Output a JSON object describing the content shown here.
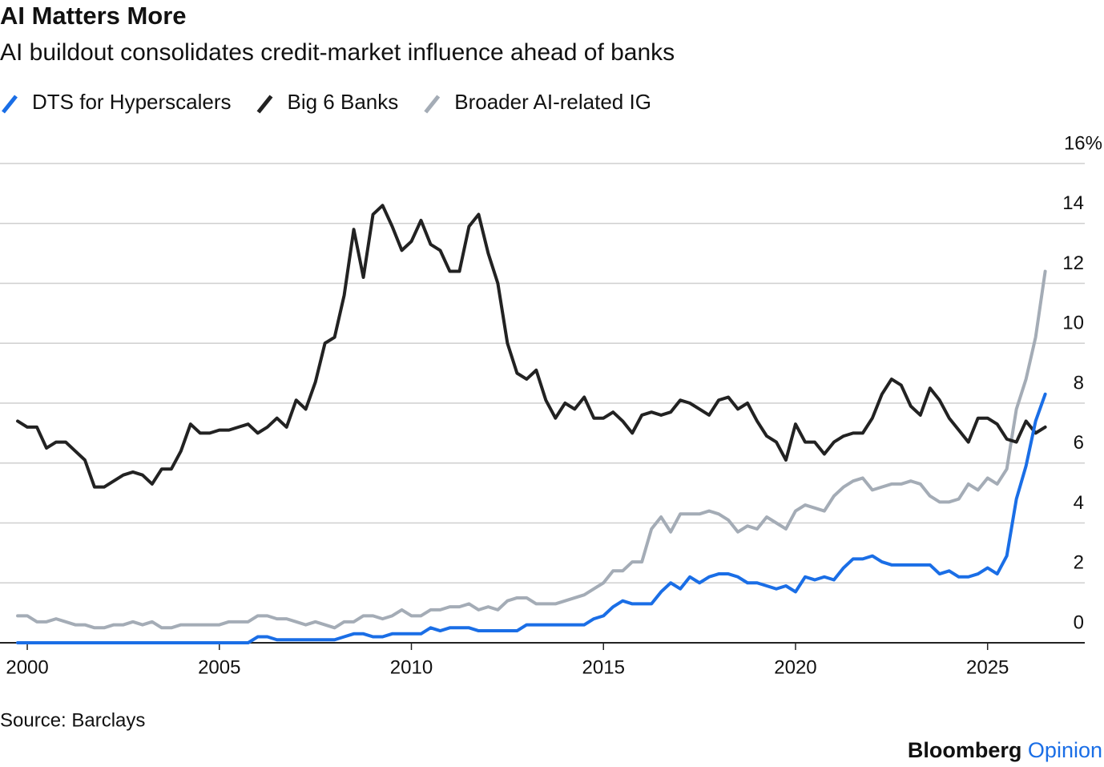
{
  "chart_data": {
    "type": "line",
    "title": "AI Matters More",
    "subtitle": "AI buildout consolidates credit-market influence ahead of banks",
    "source": "Source: Barclays",
    "brand": "Bloomberg",
    "brand_section": "Opinion",
    "x": [
      1999.75,
      2000,
      2000.25,
      2000.5,
      2000.75,
      2001,
      2001.25,
      2001.5,
      2001.75,
      2002,
      2002.25,
      2002.5,
      2002.75,
      2003,
      2003.25,
      2003.5,
      2003.75,
      2004,
      2004.25,
      2004.5,
      2004.75,
      2005,
      2005.25,
      2005.5,
      2005.75,
      2006,
      2006.25,
      2006.5,
      2006.75,
      2007,
      2007.25,
      2007.5,
      2007.75,
      2008,
      2008.25,
      2008.5,
      2008.75,
      2009,
      2009.25,
      2009.5,
      2009.75,
      2010,
      2010.25,
      2010.5,
      2010.75,
      2011,
      2011.25,
      2011.5,
      2011.75,
      2012,
      2012.25,
      2012.5,
      2012.75,
      2013,
      2013.25,
      2013.5,
      2013.75,
      2014,
      2014.25,
      2014.5,
      2014.75,
      2015,
      2015.25,
      2015.5,
      2015.75,
      2016,
      2016.25,
      2016.5,
      2016.75,
      2017,
      2017.25,
      2017.5,
      2017.75,
      2018,
      2018.25,
      2018.5,
      2018.75,
      2019,
      2019.25,
      2019.5,
      2019.75,
      2020,
      2020.25,
      2020.5,
      2020.75,
      2021,
      2021.25,
      2021.5,
      2021.75,
      2022,
      2022.25,
      2022.5,
      2022.75,
      2023,
      2023.25,
      2023.5,
      2023.75,
      2024,
      2024.25,
      2024.5,
      2024.75,
      2025,
      2025.25,
      2025.5,
      2025.75,
      2026,
      2026.25,
      2026.5
    ],
    "series": [
      {
        "name": "DTS for Hyperscalers",
        "color": "#1a6ee6",
        "values": [
          0,
          0,
          0,
          0,
          0,
          0,
          0,
          0,
          0,
          0,
          0,
          0,
          0,
          0,
          0,
          0,
          0,
          0,
          0,
          0,
          0,
          0,
          0,
          0,
          0,
          0.2,
          0.2,
          0.1,
          0.1,
          0.1,
          0.1,
          0.1,
          0.1,
          0.1,
          0.2,
          0.3,
          0.3,
          0.2,
          0.2,
          0.3,
          0.3,
          0.3,
          0.3,
          0.5,
          0.4,
          0.5,
          0.5,
          0.5,
          0.4,
          0.4,
          0.4,
          0.4,
          0.4,
          0.6,
          0.6,
          0.6,
          0.6,
          0.6,
          0.6,
          0.6,
          0.8,
          0.9,
          1.2,
          1.4,
          1.3,
          1.3,
          1.3,
          1.7,
          2.0,
          1.8,
          2.2,
          2.0,
          2.2,
          2.3,
          2.3,
          2.2,
          2.0,
          2.0,
          1.9,
          1.8,
          1.9,
          1.7,
          2.2,
          2.1,
          2.2,
          2.1,
          2.5,
          2.8,
          2.8,
          2.9,
          2.7,
          2.6,
          2.6,
          2.6,
          2.6,
          2.6,
          2.3,
          2.4,
          2.2,
          2.2,
          2.3,
          2.5,
          2.3,
          2.9,
          4.8,
          5.9,
          7.4,
          8.3
        ]
      },
      {
        "name": "Big 6 Banks",
        "color": "#222222",
        "values": [
          7.4,
          7.2,
          7.2,
          6.5,
          6.7,
          6.7,
          6.4,
          6.1,
          5.2,
          5.2,
          5.4,
          5.6,
          5.7,
          5.6,
          5.3,
          5.8,
          5.8,
          6.4,
          7.3,
          7.0,
          7.0,
          7.1,
          7.1,
          7.2,
          7.3,
          7.0,
          7.2,
          7.5,
          7.2,
          8.1,
          7.8,
          8.7,
          10.0,
          10.2,
          11.6,
          13.8,
          12.2,
          14.3,
          14.6,
          13.9,
          13.1,
          13.4,
          14.1,
          13.3,
          13.1,
          12.4,
          12.4,
          13.9,
          14.3,
          13.0,
          12.0,
          10.0,
          9.0,
          8.8,
          9.1,
          8.1,
          7.5,
          8.0,
          7.8,
          8.2,
          7.5,
          7.5,
          7.7,
          7.4,
          7.0,
          7.6,
          7.7,
          7.6,
          7.7,
          8.1,
          8.0,
          7.8,
          7.6,
          8.1,
          8.2,
          7.8,
          8.0,
          7.4,
          6.9,
          6.7,
          6.1,
          7.3,
          6.7,
          6.7,
          6.3,
          6.7,
          6.9,
          7.0,
          7.0,
          7.5,
          8.3,
          8.8,
          8.6,
          7.9,
          7.6,
          8.5,
          8.1,
          7.5,
          7.1,
          6.7,
          7.5,
          7.5,
          7.3,
          6.8,
          6.7,
          7.4,
          7.0,
          7.2
        ]
      },
      {
        "name": "Broader AI-related IG",
        "color": "#a4acb6",
        "values": [
          0.9,
          0.9,
          0.7,
          0.7,
          0.8,
          0.7,
          0.6,
          0.6,
          0.5,
          0.5,
          0.6,
          0.6,
          0.7,
          0.6,
          0.7,
          0.5,
          0.5,
          0.6,
          0.6,
          0.6,
          0.6,
          0.6,
          0.7,
          0.7,
          0.7,
          0.9,
          0.9,
          0.8,
          0.8,
          0.7,
          0.6,
          0.7,
          0.6,
          0.5,
          0.7,
          0.7,
          0.9,
          0.9,
          0.8,
          0.9,
          1.1,
          0.9,
          0.9,
          1.1,
          1.1,
          1.2,
          1.2,
          1.3,
          1.1,
          1.2,
          1.1,
          1.4,
          1.5,
          1.5,
          1.3,
          1.3,
          1.3,
          1.4,
          1.5,
          1.6,
          1.8,
          2.0,
          2.4,
          2.4,
          2.7,
          2.7,
          3.8,
          4.2,
          3.7,
          4.3,
          4.3,
          4.3,
          4.4,
          4.3,
          4.1,
          3.7,
          3.9,
          3.8,
          4.2,
          4.0,
          3.8,
          4.4,
          4.6,
          4.5,
          4.4,
          4.9,
          5.2,
          5.4,
          5.5,
          5.1,
          5.2,
          5.3,
          5.3,
          5.4,
          5.3,
          4.9,
          4.7,
          4.7,
          4.8,
          5.3,
          5.1,
          5.5,
          5.3,
          5.8,
          7.8,
          8.8,
          10.2,
          12.4
        ]
      }
    ],
    "xlim": [
      1999.29,
      2027.53
    ],
    "xticks": [
      2000,
      2005,
      2010,
      2015,
      2020,
      2025
    ],
    "ylim": [
      0,
      16
    ],
    "yticks": [
      0,
      2,
      4,
      6,
      8,
      10,
      12,
      14,
      {
        "value": 16,
        "label": "16%"
      }
    ],
    "grid": true,
    "legend": "top-left"
  }
}
